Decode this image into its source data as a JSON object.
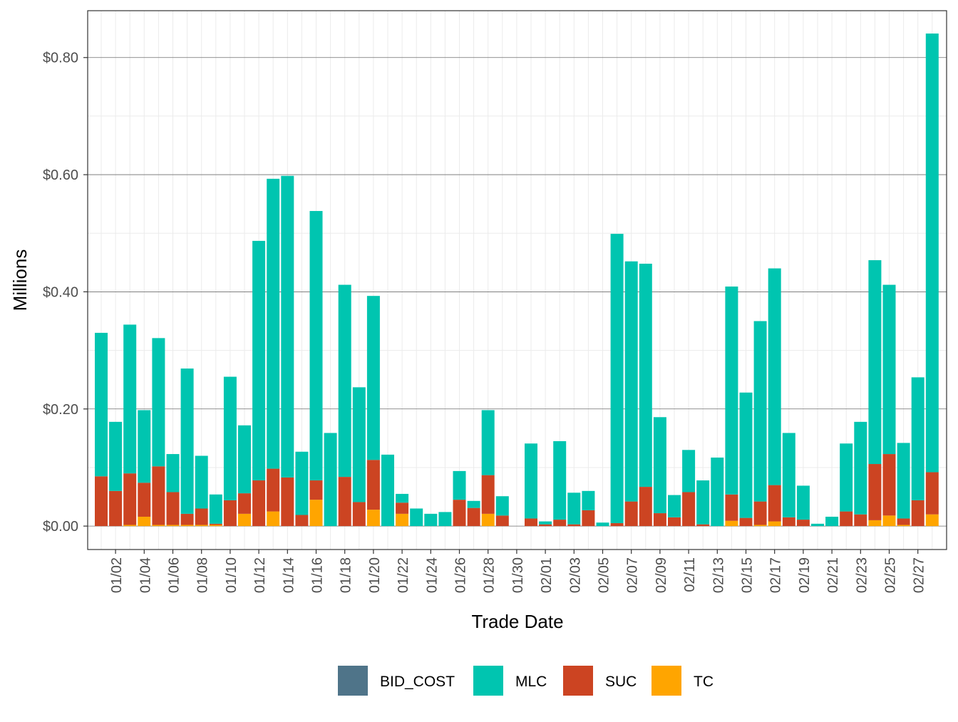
{
  "chart_data": {
    "type": "bar",
    "stacked": true,
    "title": "",
    "xlabel": "Trade Date",
    "ylabel": "Millions",
    "ylim": [
      -0.04,
      0.88
    ],
    "y_ticks": [
      0.0,
      0.2,
      0.4,
      0.6,
      0.8
    ],
    "y_tick_labels": [
      "$0.00",
      "$0.20",
      "$0.40",
      "$0.60",
      "$0.80"
    ],
    "grid": true,
    "legend_position": "bottom",
    "dates": [
      "01/01",
      "01/02",
      "01/03",
      "01/04",
      "01/05",
      "01/06",
      "01/07",
      "01/08",
      "01/09",
      "01/10",
      "01/11",
      "01/12",
      "01/13",
      "01/14",
      "01/15",
      "01/16",
      "01/17",
      "01/18",
      "01/19",
      "01/20",
      "01/21",
      "01/22",
      "01/23",
      "01/24",
      "01/25",
      "01/26",
      "01/27",
      "01/28",
      "01/29",
      "01/30",
      "01/31",
      "02/01",
      "02/02",
      "02/03",
      "02/04",
      "02/05",
      "02/06",
      "02/07",
      "02/08",
      "02/09",
      "02/10",
      "02/11",
      "02/12",
      "02/13",
      "02/14",
      "02/15",
      "02/16",
      "02/17",
      "02/18",
      "02/19",
      "02/20",
      "02/21",
      "02/22",
      "02/23",
      "02/24",
      "02/25",
      "02/26",
      "02/27",
      "02/28"
    ],
    "x_tick_labels": [
      "01/02",
      "01/04",
      "01/06",
      "01/08",
      "01/10",
      "01/12",
      "01/14",
      "01/16",
      "01/18",
      "01/20",
      "01/22",
      "01/24",
      "01/26",
      "01/28",
      "01/30",
      "02/01",
      "02/03",
      "02/05",
      "02/07",
      "02/09",
      "02/11",
      "02/13",
      "02/15",
      "02/17",
      "02/19",
      "02/21",
      "02/23",
      "02/25",
      "02/27"
    ],
    "series": [
      {
        "name": "TC",
        "color": "#FFA500",
        "values": [
          0.0,
          0.0,
          0.002,
          0.016,
          0.002,
          0.002,
          0.002,
          0.002,
          0.002,
          0.0,
          0.021,
          0.0,
          0.025,
          0.0,
          0.0,
          0.045,
          0.0,
          0.0,
          0.0,
          0.028,
          0.0,
          0.021,
          0.0,
          0.0,
          0.0,
          0.0,
          0.0,
          0.021,
          0.0,
          0.0,
          0.0,
          0.0,
          0.0,
          0.0,
          0.0,
          0.0,
          0.0,
          0.0,
          0.0,
          0.0,
          0.0,
          0.0,
          0.0,
          0.0,
          0.009,
          0.0,
          0.002,
          0.008,
          0.0,
          0.0,
          0.0,
          0.0,
          0.0,
          0.0,
          0.01,
          0.018,
          0.002,
          0.0,
          0.02
        ]
      },
      {
        "name": "SUC",
        "color": "#CC4422",
        "values": [
          0.085,
          0.06,
          0.088,
          0.058,
          0.1,
          0.056,
          0.019,
          0.028,
          0.002,
          0.044,
          0.035,
          0.078,
          0.073,
          0.083,
          0.019,
          0.033,
          0.0,
          0.084,
          0.041,
          0.085,
          0.0,
          0.019,
          0.0,
          0.0,
          0.0,
          0.045,
          0.031,
          0.066,
          0.018,
          0.0,
          0.013,
          0.003,
          0.011,
          0.003,
          0.027,
          0.0,
          0.005,
          0.042,
          0.067,
          0.022,
          0.015,
          0.058,
          0.003,
          0.0,
          0.045,
          0.014,
          0.04,
          0.062,
          0.015,
          0.011,
          0.0,
          0.0,
          0.025,
          0.02,
          0.096,
          0.105,
          0.011,
          0.044,
          0.072
        ]
      },
      {
        "name": "MLC",
        "color": "#00C5B0",
        "values": [
          0.245,
          0.118,
          0.254,
          0.124,
          0.219,
          0.065,
          0.248,
          0.09,
          0.05,
          0.211,
          0.116,
          0.409,
          0.495,
          0.515,
          0.108,
          0.46,
          0.159,
          0.328,
          0.196,
          0.28,
          0.122,
          0.015,
          0.03,
          0.021,
          0.024,
          0.049,
          0.012,
          0.111,
          0.033,
          0.0,
          0.128,
          0.005,
          0.134,
          0.054,
          0.033,
          0.006,
          0.494,
          0.41,
          0.381,
          0.164,
          0.038,
          0.072,
          0.075,
          0.117,
          0.355,
          0.214,
          0.308,
          0.37,
          0.144,
          0.058,
          0.004,
          0.016,
          0.116,
          0.158,
          0.348,
          0.289,
          0.129,
          0.21,
          0.749
        ]
      },
      {
        "name": "BID_COST",
        "color": "#4F7489",
        "values": [
          0,
          0,
          0,
          0,
          0,
          0,
          0,
          0,
          0,
          0,
          0,
          0,
          0,
          0,
          0,
          0,
          0,
          0,
          0,
          0,
          0,
          0,
          0,
          0,
          0,
          0,
          0,
          0,
          0,
          0,
          0,
          0,
          0,
          0,
          0,
          0,
          0,
          0,
          0,
          0,
          0,
          0,
          0,
          0,
          0,
          0,
          0,
          0,
          0,
          0,
          0,
          0,
          0,
          0,
          0,
          0,
          0,
          0,
          0
        ]
      }
    ],
    "legend": [
      {
        "name": "BID_COST",
        "color": "#4F7489"
      },
      {
        "name": "MLC",
        "color": "#00C5B0"
      },
      {
        "name": "SUC",
        "color": "#CC4422"
      },
      {
        "name": "TC",
        "color": "#FFA500"
      }
    ]
  }
}
